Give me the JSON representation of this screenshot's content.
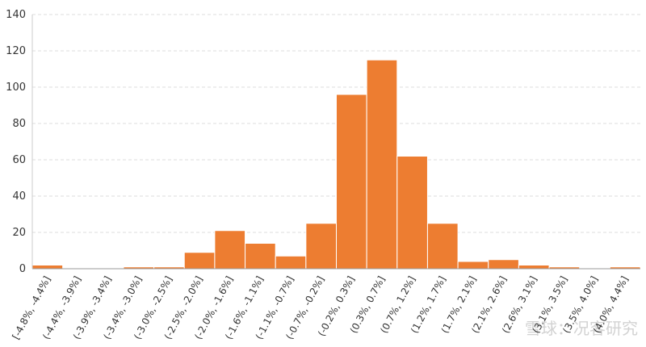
{
  "chart_data": {
    "type": "bar",
    "categories": [
      "[-4.8%, -4.4%]",
      "(-4.4%, -3.9%]",
      "(-3.9%, -3.4%]",
      "(-3.4%, -3.0%]",
      "(-3.0%, -2.5%]",
      "(-2.5%, -2.0%]",
      "(-2.0%, -1.6%]",
      "(-1.6%, -1.1%]",
      "(-1.1%, -0.7%]",
      "(-0.7%, -0.2%]",
      "(-0.2%, 0.3%]",
      "(0.3%, 0.7%]",
      "(0.7%, 1.2%]",
      "(1.2%, 1.7%]",
      "(1.7%, 2.1%]",
      "(2.1%, 2.6%]",
      "(2.6%, 3.1%]",
      "(3.1%, 3.5%]",
      "(3.5%, 4.0%]",
      "(4.0%, 4.4%]"
    ],
    "values": [
      2,
      0,
      0,
      1,
      1,
      9,
      21,
      14,
      7,
      25,
      96,
      115,
      62,
      25,
      4,
      5,
      2,
      1,
      0,
      1
    ],
    "color": "#ed7d31",
    "ylim": [
      0,
      140
    ],
    "yticks": [
      0,
      20,
      40,
      60,
      80,
      100,
      120,
      140
    ],
    "grid": true,
    "watermark": "雪球：况客研究"
  }
}
